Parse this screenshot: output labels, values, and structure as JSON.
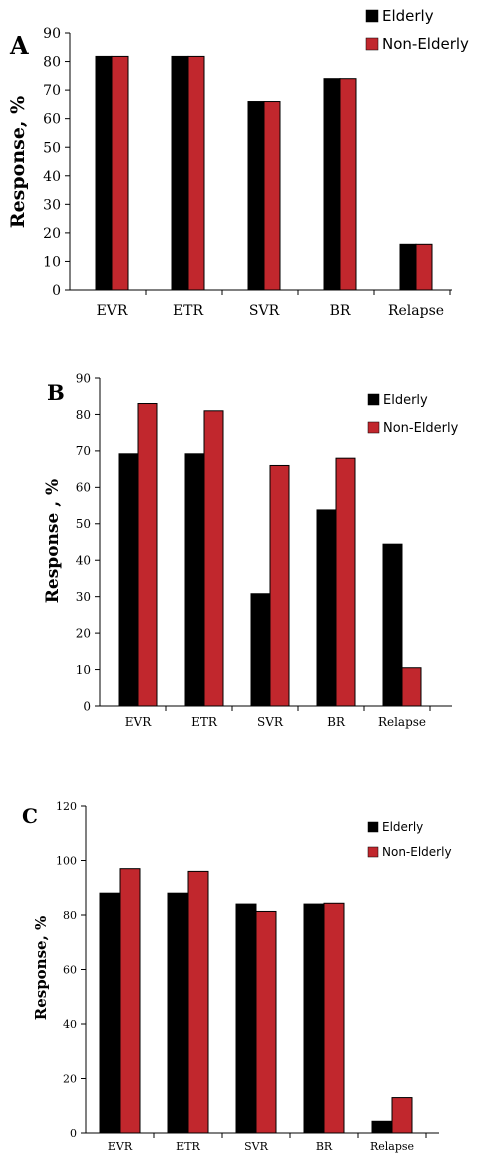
{
  "chart_data": [
    {
      "type": "bar",
      "panel_label": "A",
      "categories": [
        "EVR",
        "ETR",
        "SVR",
        "BR",
        "Relapse"
      ],
      "series": [
        {
          "name": "Elderly",
          "values": [
            81.8,
            81.8,
            66,
            74,
            16
          ],
          "color": "#000000"
        },
        {
          "name": "Non-Elderly",
          "values": [
            81.8,
            81.8,
            66,
            74,
            16
          ],
          "color": "#c1272d"
        }
      ],
      "ylabel": "Response, %",
      "ylim": [
        0,
        90
      ],
      "yticks": [
        "0",
        "10",
        "20",
        "30",
        "40",
        "50",
        "60",
        "70",
        "80",
        "90"
      ],
      "legend_position": "top-right",
      "grid": false
    },
    {
      "type": "bar",
      "panel_label": "B",
      "categories": [
        "EVR",
        "ETR",
        "SVR",
        "BR",
        "Relapse"
      ],
      "series": [
        {
          "name": "Elderly",
          "values": [
            69.2,
            69.2,
            30.8,
            53.8,
            44.4
          ],
          "color": "#000000"
        },
        {
          "name": "Non-Elderly",
          "values": [
            83,
            81,
            66,
            68,
            10.5
          ],
          "color": "#c1272d"
        }
      ],
      "ylabel": "Response , %",
      "ylim": [
        0,
        90
      ],
      "yticks": [
        "0",
        "10",
        "20",
        "30",
        "40",
        "50",
        "60",
        "70",
        "80",
        "90"
      ],
      "legend_position": "top-right",
      "grid": false
    },
    {
      "type": "bar",
      "panel_label": "C",
      "categories": [
        "EVR",
        "ETR",
        "SVR",
        "BR",
        "Relapse"
      ],
      "series": [
        {
          "name": "Elderly",
          "values": [
            88,
            88,
            84,
            84,
            4.3
          ],
          "color": "#000000"
        },
        {
          "name": "Non-Elderly",
          "values": [
            97,
            96,
            81.3,
            84.3,
            13
          ],
          "color": "#c1272d"
        }
      ],
      "ylabel": "Response, %",
      "ylim": [
        0,
        120
      ],
      "yticks": [
        "0",
        "20",
        "40",
        "60",
        "80",
        "100",
        "120"
      ],
      "legend_position": "top-right",
      "grid": false
    }
  ]
}
